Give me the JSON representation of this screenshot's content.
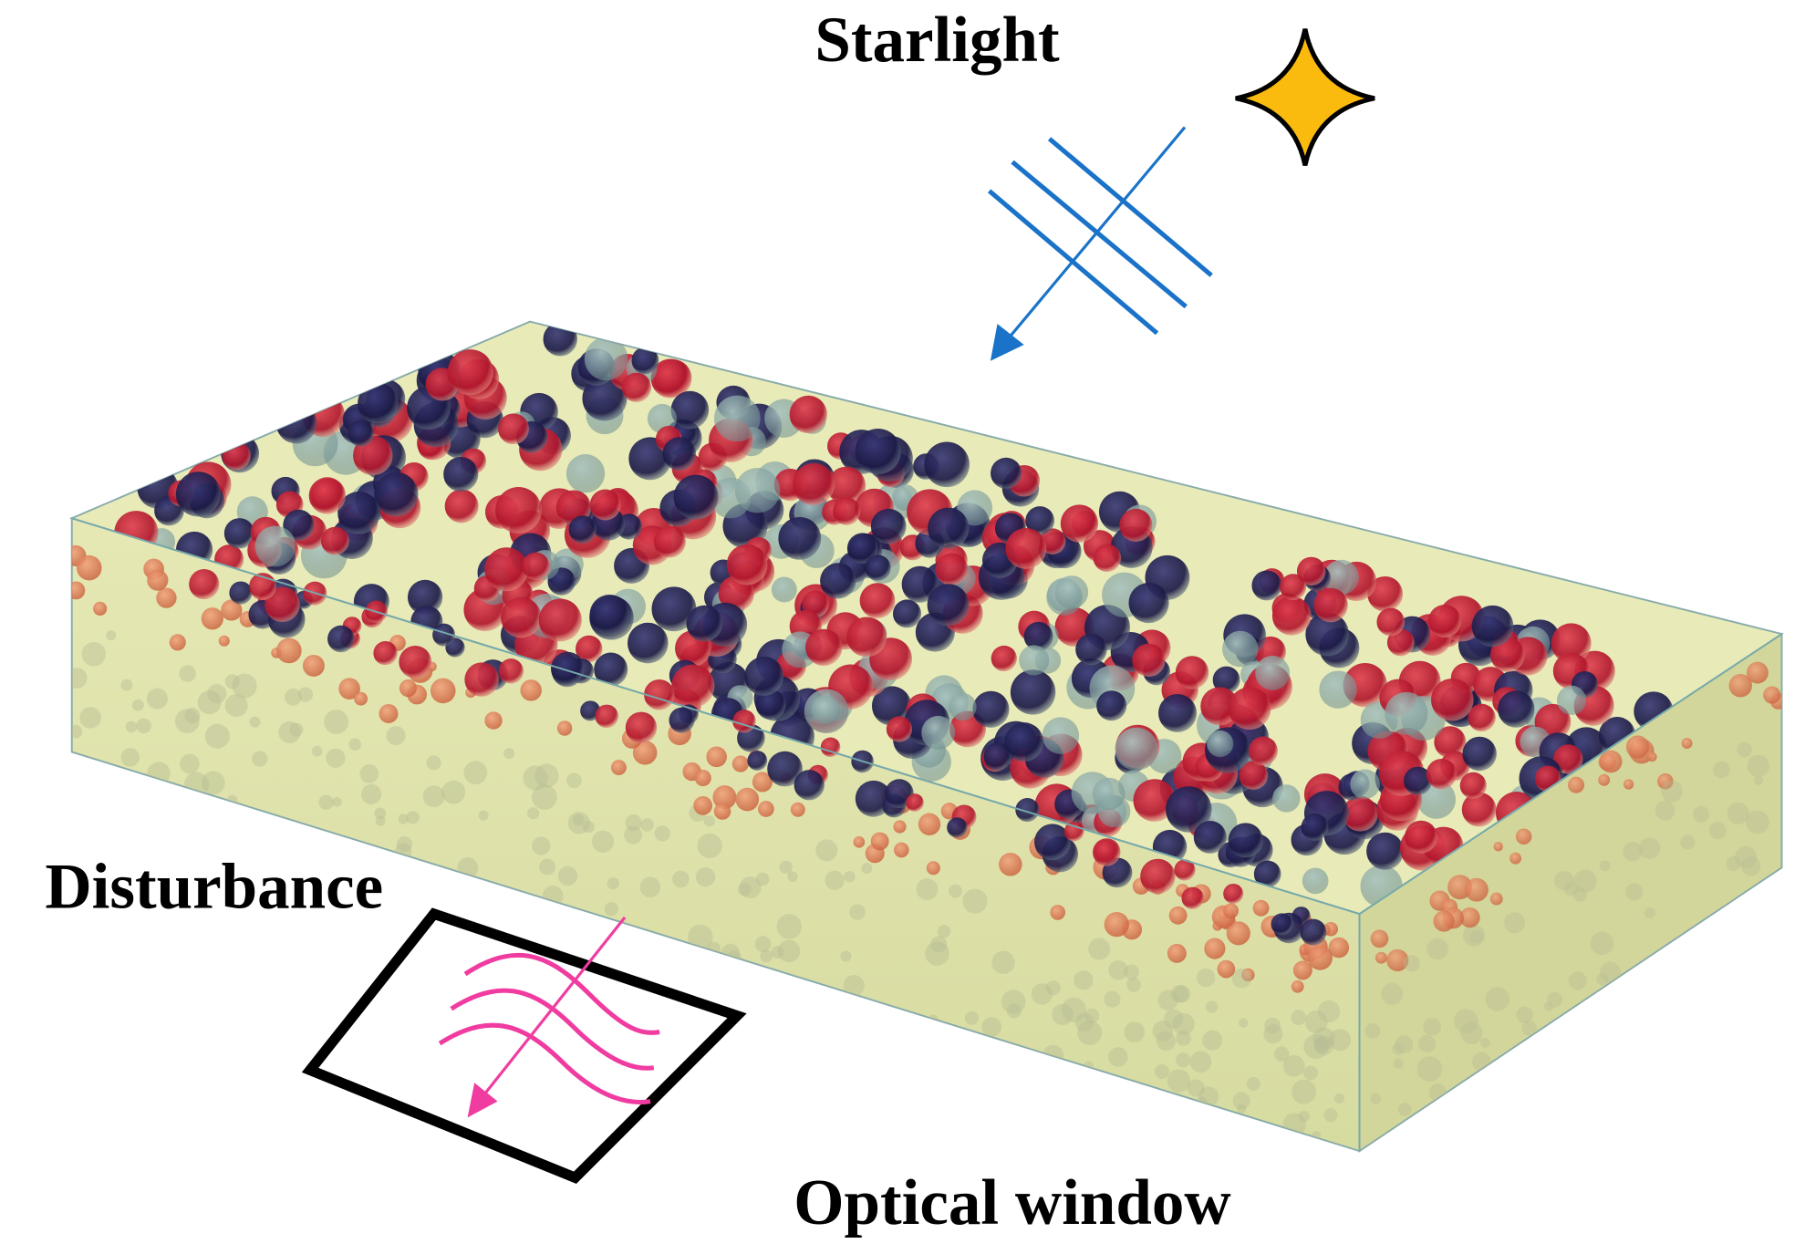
{
  "labels": {
    "starlight": "Starlight",
    "disturbance": "Disturbance",
    "optical_window": "Optical window"
  }
}
